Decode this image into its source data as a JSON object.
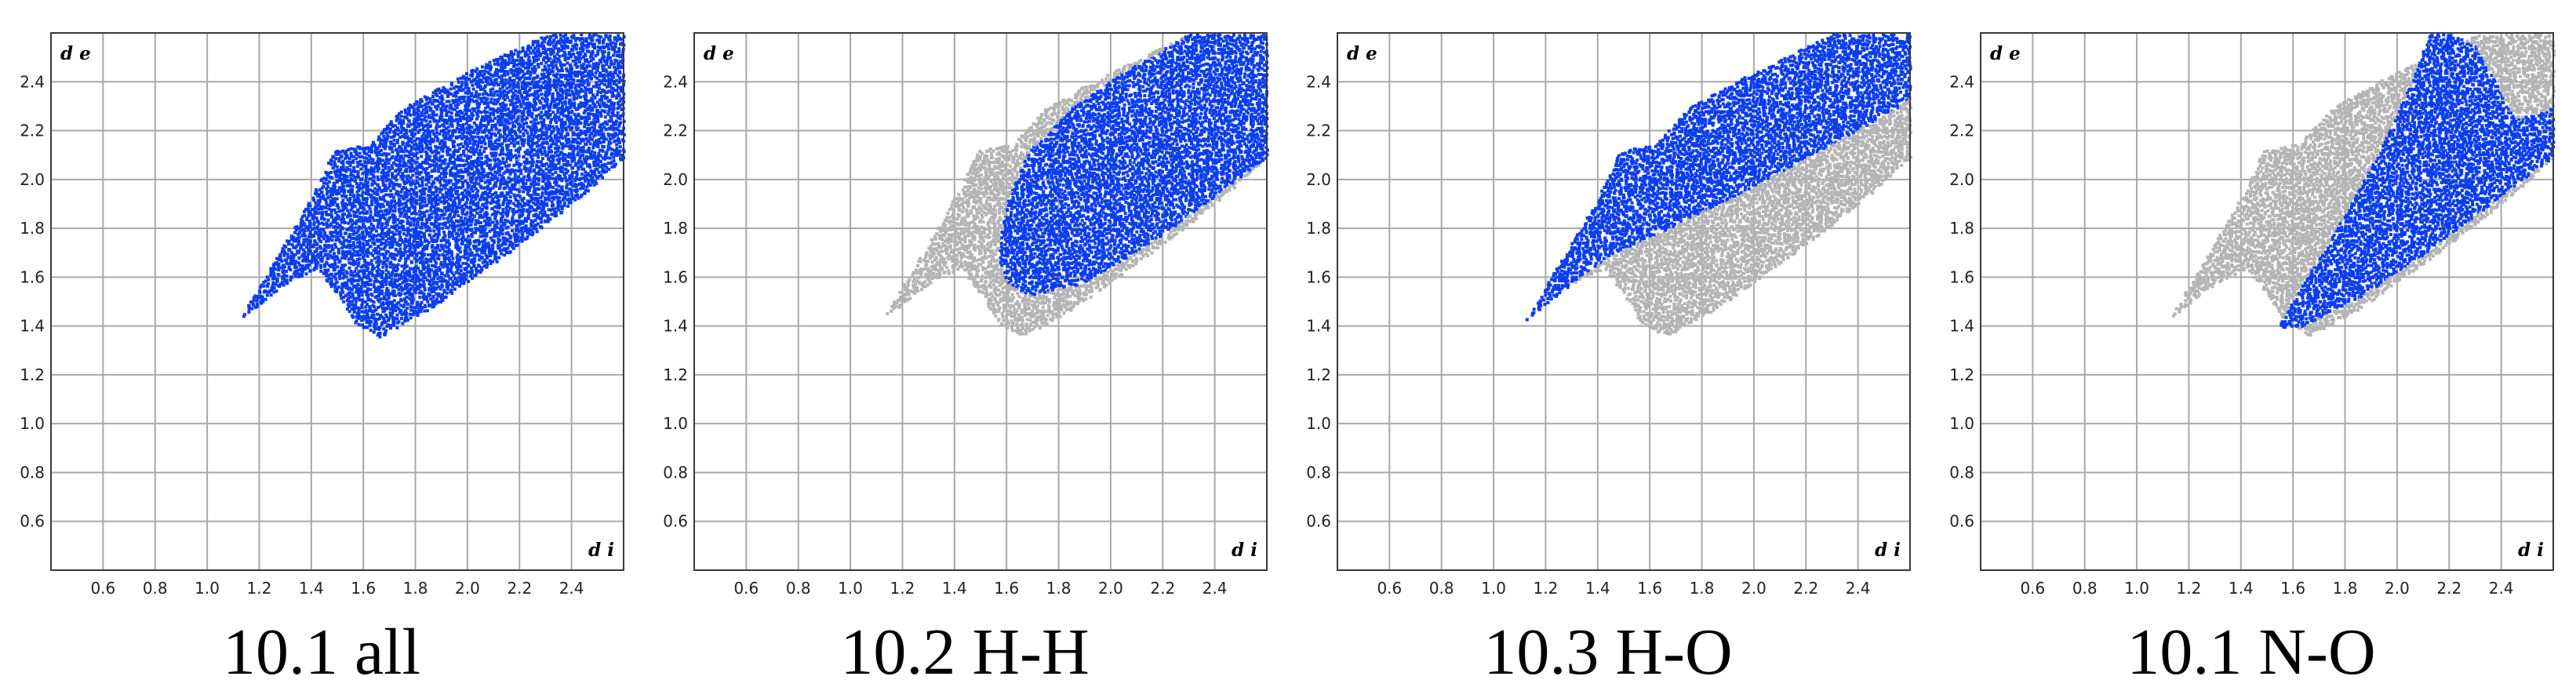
{
  "figure": {
    "colors": {
      "highlight": "#0a3cf0",
      "background_points": "#b4b4b4",
      "grid": "#a8a8a8",
      "frame": "#3a3a3a"
    }
  },
  "chart_data": [
    {
      "type": "scatter",
      "title": "10.1 all",
      "ylabel": "d e",
      "xlabel": "d i",
      "xlim": [
        0.4,
        2.6
      ],
      "ylim": [
        0.4,
        2.6
      ],
      "xticks": [
        "0.6",
        "0.8",
        "1.0",
        "1.2",
        "1.4",
        "1.6",
        "1.8",
        "2.0",
        "2.2",
        "2.4"
      ],
      "yticks": [
        "0.6",
        "0.8",
        "1.0",
        "1.2",
        "1.4",
        "1.6",
        "1.8",
        "2.0",
        "2.2",
        "2.4"
      ],
      "grid": true,
      "background_region": [],
      "highlight_region": [
        [
          1.12,
          1.43
        ],
        [
          1.3,
          1.58
        ],
        [
          1.42,
          1.64
        ],
        [
          1.5,
          1.53
        ],
        [
          1.56,
          1.42
        ],
        [
          1.66,
          1.36
        ],
        [
          1.86,
          1.48
        ],
        [
          2.2,
          1.74
        ],
        [
          2.45,
          1.95
        ],
        [
          2.6,
          2.1
        ],
        [
          2.6,
          2.6
        ],
        [
          2.3,
          2.6
        ],
        [
          1.95,
          2.42
        ],
        [
          1.75,
          2.3
        ],
        [
          1.62,
          2.15
        ],
        [
          1.48,
          2.12
        ],
        [
          1.42,
          1.98
        ],
        [
          1.36,
          1.86
        ]
      ]
    },
    {
      "type": "scatter",
      "title": "10.2 H-H",
      "ylabel": "d e",
      "xlabel": "d i",
      "xlim": [
        0.4,
        2.6
      ],
      "ylim": [
        0.4,
        2.6
      ],
      "xticks": [
        "0.6",
        "0.8",
        "1.0",
        "1.2",
        "1.4",
        "1.6",
        "1.8",
        "2.0",
        "2.2",
        "2.4"
      ],
      "yticks": [
        "0.6",
        "0.8",
        "1.0",
        "1.2",
        "1.4",
        "1.6",
        "1.8",
        "2.0",
        "2.2",
        "2.4"
      ],
      "grid": true,
      "background_region": [
        [
          1.12,
          1.43
        ],
        [
          1.3,
          1.58
        ],
        [
          1.42,
          1.64
        ],
        [
          1.5,
          1.53
        ],
        [
          1.56,
          1.42
        ],
        [
          1.66,
          1.36
        ],
        [
          1.86,
          1.48
        ],
        [
          2.2,
          1.74
        ],
        [
          2.45,
          1.95
        ],
        [
          2.6,
          2.1
        ],
        [
          2.6,
          2.6
        ],
        [
          2.3,
          2.6
        ],
        [
          1.95,
          2.42
        ],
        [
          1.75,
          2.3
        ],
        [
          1.62,
          2.15
        ],
        [
          1.48,
          2.12
        ],
        [
          1.42,
          1.98
        ],
        [
          1.36,
          1.86
        ]
      ],
      "highlight_region": [
        [
          1.56,
          1.7
        ],
        [
          1.6,
          1.58
        ],
        [
          1.68,
          1.53
        ],
        [
          1.9,
          1.58
        ],
        [
          2.2,
          1.78
        ],
        [
          2.45,
          1.98
        ],
        [
          2.6,
          2.1
        ],
        [
          2.6,
          2.6
        ],
        [
          2.3,
          2.6
        ],
        [
          2.05,
          2.45
        ],
        [
          1.85,
          2.3
        ],
        [
          1.68,
          2.12
        ],
        [
          1.6,
          1.92
        ]
      ]
    },
    {
      "type": "scatter",
      "title": "10.3 H-O",
      "ylabel": "d e",
      "xlabel": "d i",
      "xlim": [
        0.4,
        2.6
      ],
      "ylim": [
        0.4,
        2.6
      ],
      "xticks": [
        "0.6",
        "0.8",
        "1.0",
        "1.2",
        "1.4",
        "1.6",
        "1.8",
        "2.0",
        "2.2",
        "2.4"
      ],
      "yticks": [
        "0.6",
        "0.8",
        "1.0",
        "1.2",
        "1.4",
        "1.6",
        "1.8",
        "2.0",
        "2.2",
        "2.4"
      ],
      "grid": true,
      "background_region": [
        [
          1.12,
          1.43
        ],
        [
          1.3,
          1.58
        ],
        [
          1.42,
          1.64
        ],
        [
          1.5,
          1.53
        ],
        [
          1.56,
          1.42
        ],
        [
          1.66,
          1.36
        ],
        [
          1.86,
          1.48
        ],
        [
          2.2,
          1.74
        ],
        [
          2.45,
          1.95
        ],
        [
          2.6,
          2.1
        ],
        [
          2.6,
          2.6
        ],
        [
          2.3,
          2.6
        ],
        [
          1.95,
          2.42
        ],
        [
          1.75,
          2.3
        ],
        [
          1.62,
          2.15
        ],
        [
          1.48,
          2.12
        ],
        [
          1.42,
          1.98
        ],
        [
          1.36,
          1.86
        ]
      ],
      "highlight_region": [
        [
          1.12,
          1.43
        ],
        [
          1.3,
          1.58
        ],
        [
          1.45,
          1.7
        ],
        [
          1.7,
          1.82
        ],
        [
          2.0,
          1.98
        ],
        [
          2.3,
          2.15
        ],
        [
          2.55,
          2.3
        ],
        [
          2.6,
          2.35
        ],
        [
          2.6,
          2.6
        ],
        [
          2.3,
          2.6
        ],
        [
          1.95,
          2.42
        ],
        [
          1.75,
          2.3
        ],
        [
          1.62,
          2.15
        ],
        [
          1.48,
          2.12
        ],
        [
          1.42,
          1.98
        ],
        [
          1.36,
          1.86
        ]
      ]
    },
    {
      "type": "scatter",
      "title": "10.1 N-O",
      "ylabel": "d e",
      "xlabel": "d i",
      "xlim": [
        0.4,
        2.6
      ],
      "ylim": [
        0.4,
        2.6
      ],
      "xticks": [
        "0.6",
        "0.8",
        "1.0",
        "1.2",
        "1.4",
        "1.6",
        "1.8",
        "2.0",
        "2.2",
        "2.4"
      ],
      "yticks": [
        "0.6",
        "0.8",
        "1.0",
        "1.2",
        "1.4",
        "1.6",
        "1.8",
        "2.0",
        "2.2",
        "2.4"
      ],
      "grid": true,
      "background_region": [
        [
          1.12,
          1.43
        ],
        [
          1.3,
          1.58
        ],
        [
          1.42,
          1.64
        ],
        [
          1.5,
          1.53
        ],
        [
          1.56,
          1.42
        ],
        [
          1.66,
          1.36
        ],
        [
          1.86,
          1.48
        ],
        [
          2.2,
          1.74
        ],
        [
          2.45,
          1.95
        ],
        [
          2.6,
          2.1
        ],
        [
          2.6,
          2.6
        ],
        [
          2.3,
          2.6
        ],
        [
          1.95,
          2.42
        ],
        [
          1.75,
          2.3
        ],
        [
          1.62,
          2.15
        ],
        [
          1.48,
          2.12
        ],
        [
          1.42,
          1.98
        ],
        [
          1.36,
          1.86
        ]
      ],
      "highlight_region": [
        [
          1.54,
          1.4
        ],
        [
          1.62,
          1.4
        ],
        [
          1.85,
          1.52
        ],
        [
          2.1,
          1.7
        ],
        [
          2.35,
          1.9
        ],
        [
          2.6,
          2.1
        ],
        [
          2.6,
          2.3
        ],
        [
          2.45,
          2.25
        ],
        [
          2.3,
          2.55
        ],
        [
          2.2,
          2.6
        ],
        [
          2.12,
          2.6
        ],
        [
          2.05,
          2.4
        ],
        [
          1.92,
          2.1
        ],
        [
          1.75,
          1.78
        ],
        [
          1.62,
          1.55
        ]
      ]
    }
  ]
}
